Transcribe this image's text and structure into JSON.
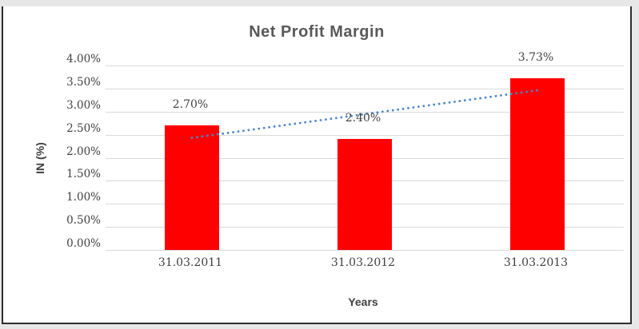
{
  "chart_data": {
    "type": "bar",
    "title": "Net Profit Margin",
    "categories": [
      "31.03.2011",
      "31.03.2012",
      "31.03.2013"
    ],
    "values": [
      2.7,
      2.4,
      3.73
    ],
    "data_labels": [
      "2.70%",
      "2.40%",
      "3.73%"
    ],
    "xlabel": "Years",
    "ylabel": "IN (%)",
    "ylim": [
      0,
      4
    ],
    "ytick_step": 0.5,
    "ytick_labels": [
      "0.00%",
      "0.50%",
      "1.00%",
      "1.50%",
      "2.00%",
      "2.50%",
      "3.00%",
      "3.50%",
      "4.00%"
    ],
    "grid": true,
    "legend": "none",
    "bar_color": "#ff0000",
    "gridline_color": "#d9d9d9",
    "title_color": "#595959",
    "label_color": "#3f3f3f",
    "trendline": {
      "type": "linear",
      "style": "dotted",
      "color": "#4a85c6",
      "start_value": 2.43,
      "end_value": 3.46
    }
  }
}
